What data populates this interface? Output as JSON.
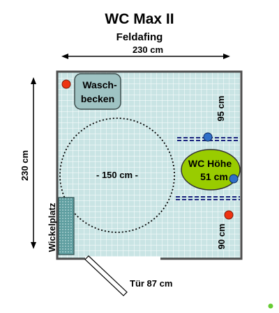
{
  "title": "WC Max II",
  "subtitle": "Feldafing",
  "dimensions": {
    "width_label": "230 cm",
    "depth_label": "230 cm",
    "turning_circle_label": "- 150 cm -",
    "right_clearance_top_label": "95 cm",
    "right_clearance_bottom_label": "90 cm",
    "door_label": "Tür 87 cm"
  },
  "fixtures": {
    "sink_line1": "Wasch-",
    "sink_line2": "becken",
    "toilet_line1": "WC Höhe",
    "toilet_line2": "51 cm",
    "changing_table": "Wickelplatz"
  },
  "colors": {
    "floor": "#c9e4e4",
    "grid": "#ffffff",
    "wall": "#4d4d4d",
    "sink": "#9fc3c3",
    "toilet": "#99cc00",
    "changing_table": "#5f9ea0",
    "alarm_button": "#ee3311",
    "grab_bar_knob": "#2f6fc8",
    "grab_bar": "#1a237e",
    "status_dot": "#66cc33"
  },
  "icons": {
    "alarm_button": "red-circle-icon",
    "grab_bar_knob": "blue-circle-icon",
    "status": "green-dot-icon"
  }
}
